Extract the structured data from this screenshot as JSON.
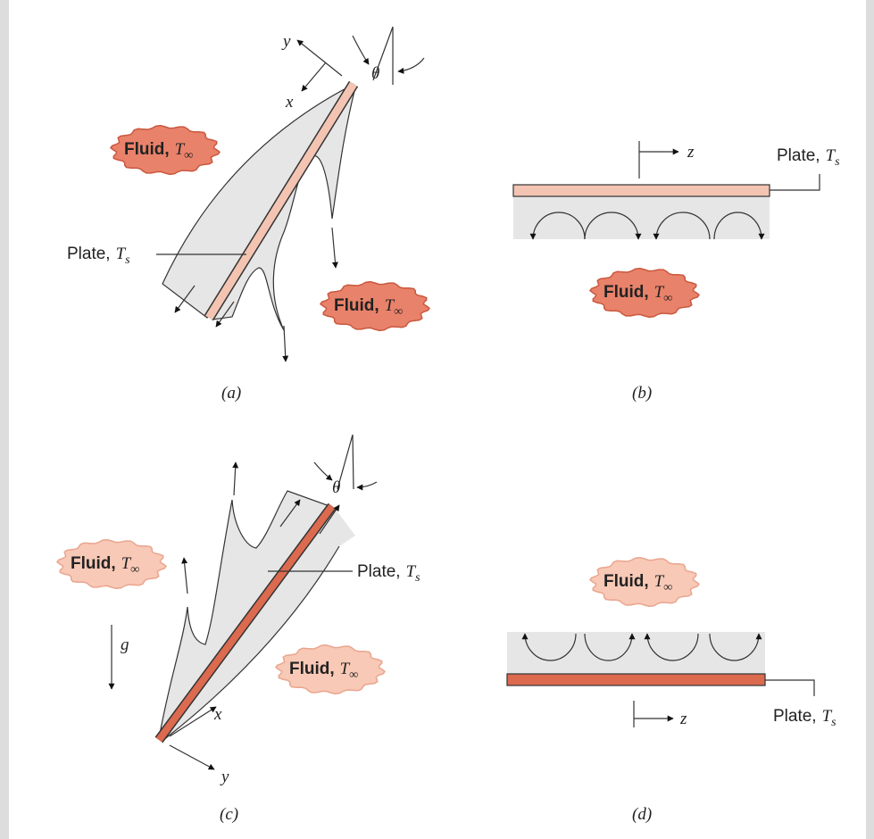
{
  "panel_a": {
    "caption": "(a)",
    "x_axis": "x",
    "y_axis": "y",
    "angle": "θ",
    "fluid_1": {
      "word": "Fluid,",
      "symbol": "T",
      "subscript": "∞"
    },
    "fluid_2": {
      "word": "Fluid,",
      "symbol": "T",
      "subscript": "∞"
    },
    "plate": {
      "word": "Plate,",
      "symbol": "T",
      "subscript": "s"
    }
  },
  "panel_b": {
    "caption": "(b)",
    "z_axis": "z",
    "fluid": {
      "word": "Fluid,",
      "symbol": "T",
      "subscript": "∞"
    },
    "plate": {
      "word": "Plate,",
      "symbol": "T",
      "subscript": "s"
    }
  },
  "panel_c": {
    "caption": "(c)",
    "x_axis": "x",
    "y_axis": "y",
    "angle": "θ",
    "gravity": "g",
    "fluid_1": {
      "word": "Fluid,",
      "symbol": "T",
      "subscript": "∞"
    },
    "fluid_2": {
      "word": "Fluid,",
      "symbol": "T",
      "subscript": "∞"
    },
    "plate": {
      "word": "Plate,",
      "symbol": "T",
      "subscript": "s"
    }
  },
  "panel_d": {
    "caption": "(d)",
    "z_axis": "z",
    "fluid": {
      "word": "Fluid,",
      "symbol": "T",
      "subscript": "∞"
    },
    "plate": {
      "word": "Plate,",
      "symbol": "T",
      "subscript": "s"
    }
  }
}
